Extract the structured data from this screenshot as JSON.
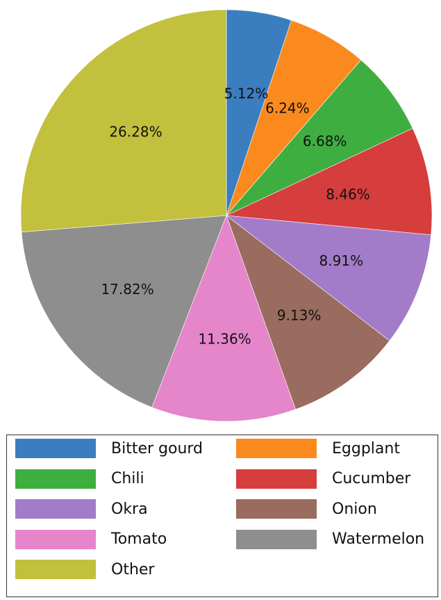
{
  "chart_data": {
    "type": "pie",
    "title": "",
    "start_angle": "top, clockwise",
    "slices": [
      {
        "label": "Bitter gourd",
        "value": 5.12,
        "display": "5.12%",
        "color": "#3a7ec0"
      },
      {
        "label": "Eggplant",
        "value": 6.24,
        "display": "6.24%",
        "color": "#fb8a1e"
      },
      {
        "label": "Chili",
        "value": 6.68,
        "display": "6.68%",
        "color": "#3fae40"
      },
      {
        "label": "Cucumber",
        "value": 8.46,
        "display": "8.46%",
        "color": "#d63d3d"
      },
      {
        "label": "Okra",
        "value": 8.91,
        "display": "8.91%",
        "color": "#a27cc8"
      },
      {
        "label": "Onion",
        "value": 9.13,
        "display": "9.13%",
        "color": "#9a6b5f"
      },
      {
        "label": "Tomato",
        "value": 11.36,
        "display": "11.36%",
        "color": "#e585ca"
      },
      {
        "label": "Watermelon",
        "value": 17.82,
        "display": "17.82%",
        "color": "#8e8e8e"
      },
      {
        "label": "Other",
        "value": 26.28,
        "display": "26.28%",
        "color": "#c2c03d"
      }
    ],
    "legend": {
      "placement": "bottom",
      "columns": 2,
      "entries": [
        "Bitter gourd",
        "Eggplant",
        "Chili",
        "Cucumber",
        "Okra",
        "Onion",
        "Tomato",
        "Watermelon",
        "Other"
      ]
    }
  }
}
